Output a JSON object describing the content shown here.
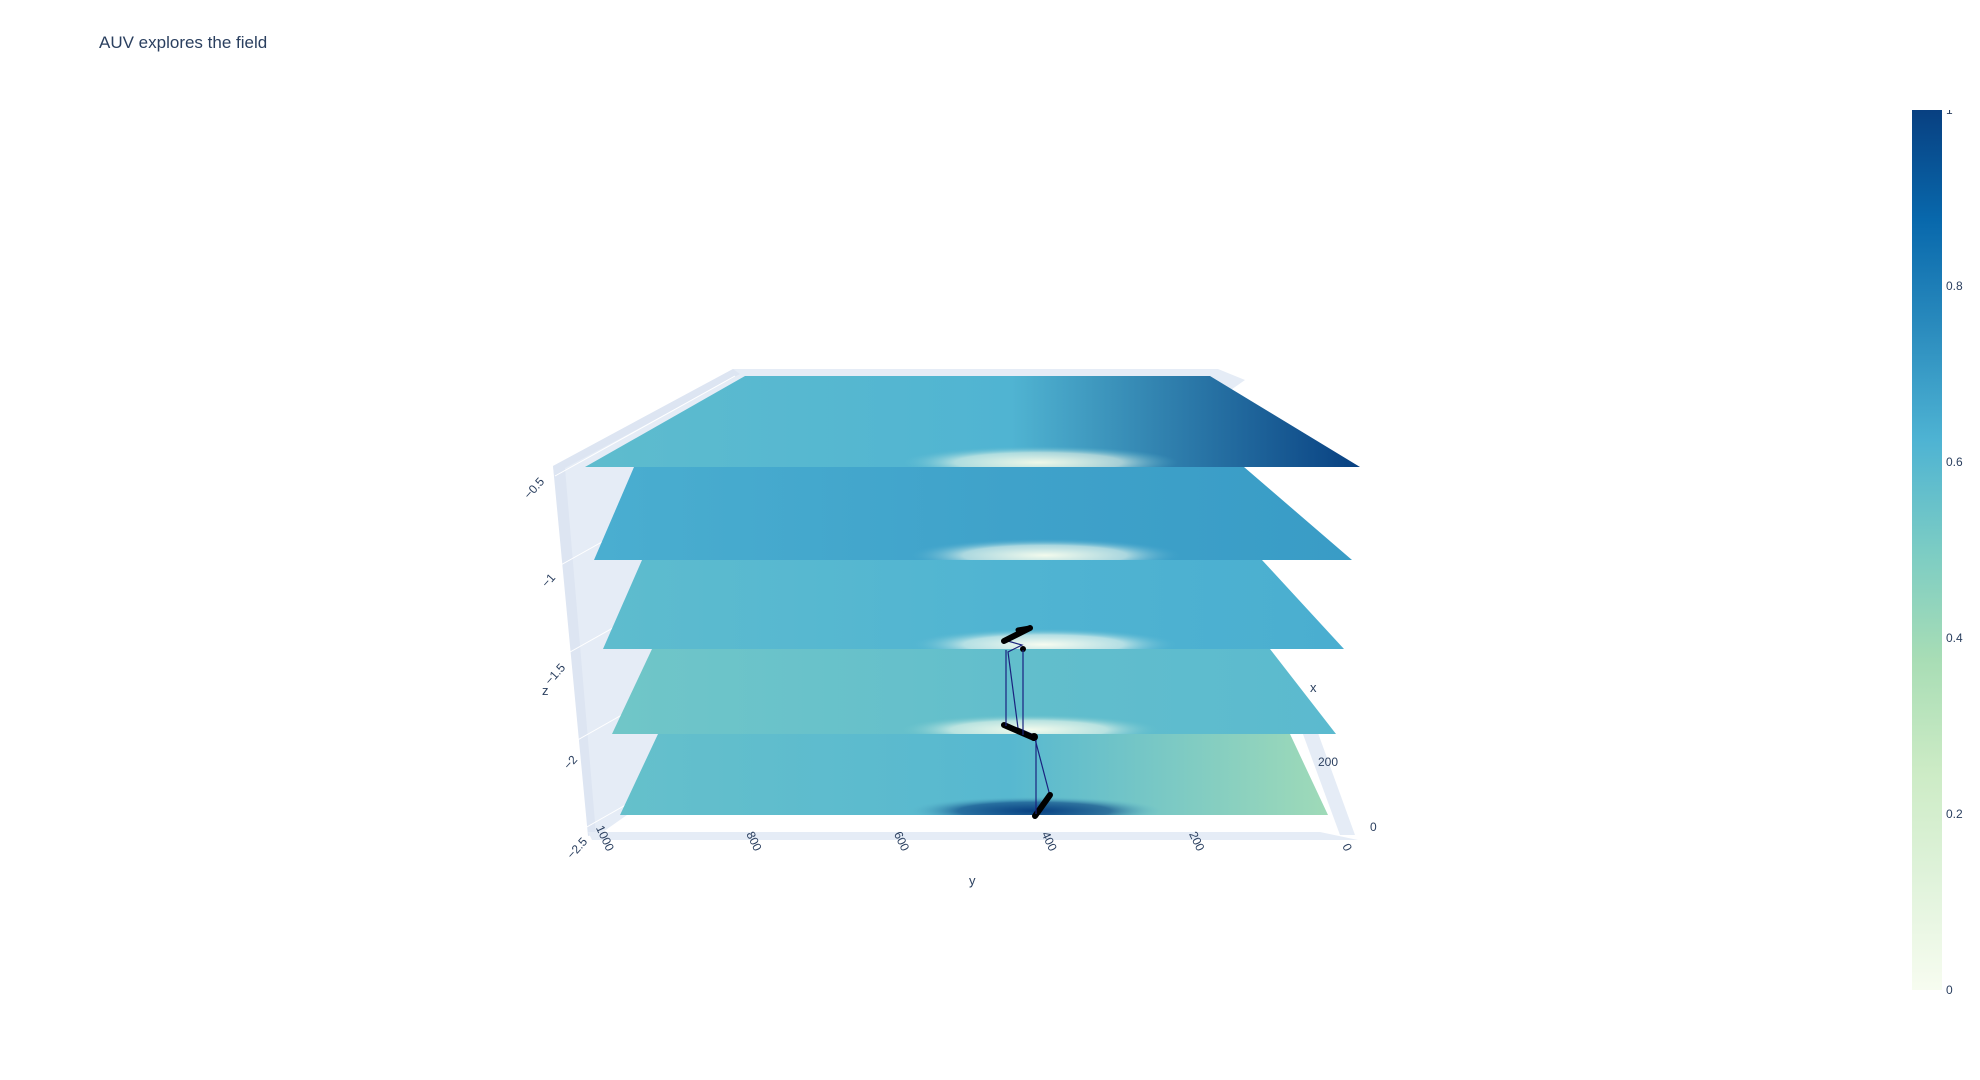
{
  "chart_data": {
    "type": "surface",
    "title": "AUV explores the field",
    "axes": {
      "x": {
        "label": "x",
        "ticks": [
          "0",
          "200"
        ]
      },
      "y": {
        "label": "y",
        "ticks": [
          "1000",
          "800",
          "600",
          "400",
          "200",
          "0"
        ],
        "range": [
          1000,
          0
        ]
      },
      "z": {
        "label": "z",
        "ticks": [
          "−0.5",
          "−1",
          "−1.5",
          "−2",
          "−2.5"
        ],
        "range": [
          -2.5,
          -0.5
        ]
      }
    },
    "surfaces": [
      {
        "z": -0.5,
        "hotspot_y": 410,
        "hotspot_value": 0.05,
        "background_value": 0.6,
        "dark_corner_value": 1.0
      },
      {
        "z": -1.0,
        "hotspot_y": 400,
        "hotspot_value": 0.02,
        "background_value": 0.66
      },
      {
        "z": -1.5,
        "hotspot_y": 400,
        "hotspot_value": 0.0,
        "background_value": 0.6
      },
      {
        "z": -2.0,
        "hotspot_y": 420,
        "hotspot_value": 0.02,
        "background_value": 0.55
      },
      {
        "z": -2.5,
        "hotspot_y": 410,
        "hotspot_value": 1.0,
        "background_value": 0.58,
        "light_corner_value": 0.4
      }
    ],
    "auv_path": [
      {
        "y": 420,
        "z": -2.5
      },
      {
        "y": 380,
        "z": -2.45
      },
      {
        "y": 420,
        "z": -2.0
      },
      {
        "y": 450,
        "z": -1.98
      },
      {
        "y": 450,
        "z": -1.5
      },
      {
        "y": 420,
        "z": -1.48
      },
      {
        "y": 395,
        "z": -1.45
      },
      {
        "y": 425,
        "z": -1.55
      }
    ],
    "colorbar": {
      "colorscale": "GnBu",
      "range": [
        0,
        1
      ],
      "ticks": [
        "0",
        "0.2",
        "0.4",
        "0.6",
        "0.8",
        "1"
      ]
    }
  }
}
